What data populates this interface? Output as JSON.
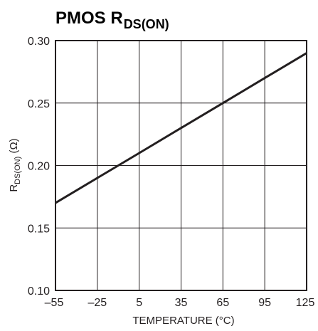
{
  "chart_data": {
    "type": "line",
    "title": {
      "main": "PMOS R",
      "subscript": "DS(ON)"
    },
    "xlabel": "TEMPERATURE (°C)",
    "ylabel": {
      "prefix": "R",
      "subscript": "DS(ON)",
      "suffix": " (Ω)"
    },
    "xlim": [
      -55,
      125
    ],
    "ylim": [
      0.1,
      0.3
    ],
    "x_ticks": [
      "–55",
      "–25",
      "5",
      "35",
      "65",
      "95",
      "125"
    ],
    "x_tick_values": [
      -55,
      -25,
      5,
      35,
      65,
      95,
      125
    ],
    "y_ticks": [
      "0.10",
      "0.15",
      "0.20",
      "0.25",
      "0.30"
    ],
    "y_tick_values": [
      0.1,
      0.15,
      0.2,
      0.25,
      0.3
    ],
    "grid": true,
    "series": [
      {
        "x": [
          -55,
          -25,
          5,
          35,
          65,
          95,
          125
        ],
        "y": [
          0.17,
          0.19,
          0.21,
          0.23,
          0.25,
          0.27,
          0.29
        ]
      }
    ]
  },
  "colors": {
    "line": "#231f20",
    "grid": "#231f20",
    "text": "#231f20"
  }
}
